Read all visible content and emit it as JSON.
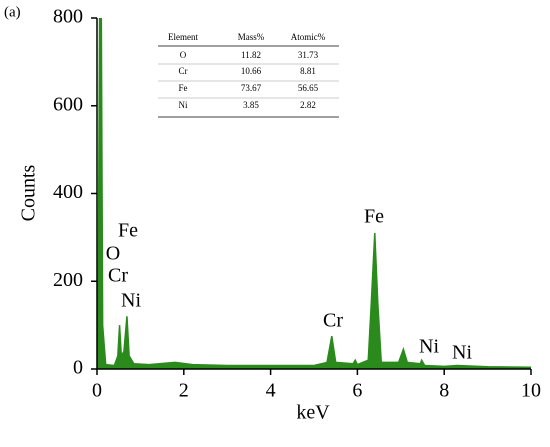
{
  "chart_data": {
    "type": "area",
    "panel_label": "(a)",
    "xlabel": "keV",
    "ylabel": "Counts",
    "color": "#2a8a1c",
    "x": [
      0,
      0.03,
      0.06,
      0.1,
      0.13,
      0.2,
      0.4,
      0.48,
      0.52,
      0.56,
      0.62,
      0.69,
      0.74,
      0.85,
      1.2,
      1.8,
      2.2,
      3,
      4,
      5,
      5.3,
      5.41,
      5.5,
      5.9,
      5.95,
      6.0,
      6.25,
      6.32,
      6.4,
      6.47,
      6.55,
      6.95,
      7.06,
      7.15,
      7.45,
      7.48,
      7.55,
      8,
      8.3,
      9,
      10
    ],
    "values": [
      0,
      200,
      800,
      800,
      100,
      10,
      8,
      30,
      100,
      30,
      40,
      120,
      30,
      12,
      10,
      15,
      10,
      8,
      8,
      8,
      15,
      75,
      15,
      12,
      20,
      10,
      20,
      150,
      310,
      150,
      15,
      15,
      45,
      15,
      12,
      20,
      8,
      6,
      8,
      5,
      4
    ],
    "xlim": [
      0,
      10
    ],
    "ylim": [
      0,
      800
    ],
    "xticks": [
      0,
      2,
      4,
      6,
      8,
      10
    ],
    "yticks": [
      0,
      200,
      400,
      600,
      800
    ],
    "annotations": [
      "Fe",
      "O",
      "Cr",
      "Ni",
      "Cr",
      "Fe",
      "Ni",
      "Ni"
    ],
    "table": {
      "header": [
        "Element",
        "Mass%",
        "Atomic%"
      ],
      "rows": [
        [
          "O",
          "11.82",
          "31.73"
        ],
        [
          "Cr",
          "10.66",
          "8.81"
        ],
        [
          "Fe",
          "73.67",
          "56.65"
        ],
        [
          "Ni",
          "3.85",
          "2.82"
        ]
      ]
    }
  }
}
